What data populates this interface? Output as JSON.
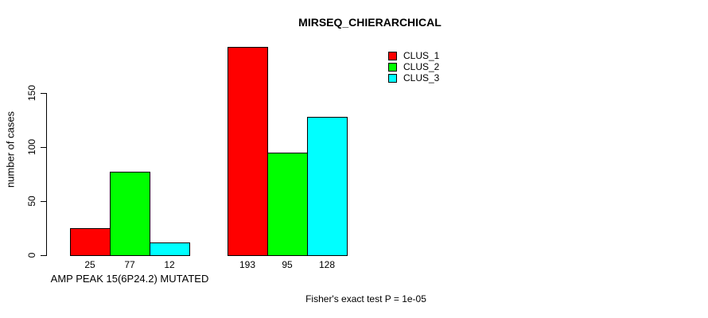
{
  "chart_data": {
    "type": "bar",
    "title": "MIRSEQ_CHIERARCHICAL",
    "ylabel": "number of cases",
    "categories": [
      "AMP PEAK 15(6P24.2) MUTATED",
      ""
    ],
    "series": [
      {
        "name": "CLUS_1",
        "color": "#ff0000",
        "values": [
          25,
          193
        ]
      },
      {
        "name": "CLUS_2",
        "color": "#00ff00",
        "values": [
          77,
          95
        ]
      },
      {
        "name": "CLUS_3",
        "color": "#00ffff",
        "values": [
          12,
          128
        ]
      }
    ],
    "yticks": [
      0,
      50,
      100,
      150
    ],
    "ylim": [
      0,
      150
    ],
    "grid": false,
    "bar_value_labels": [
      25,
      77,
      12,
      193,
      95,
      128
    ],
    "legend_position": "top-right",
    "annotation": "Fisher's exact test P = 1e-05"
  }
}
